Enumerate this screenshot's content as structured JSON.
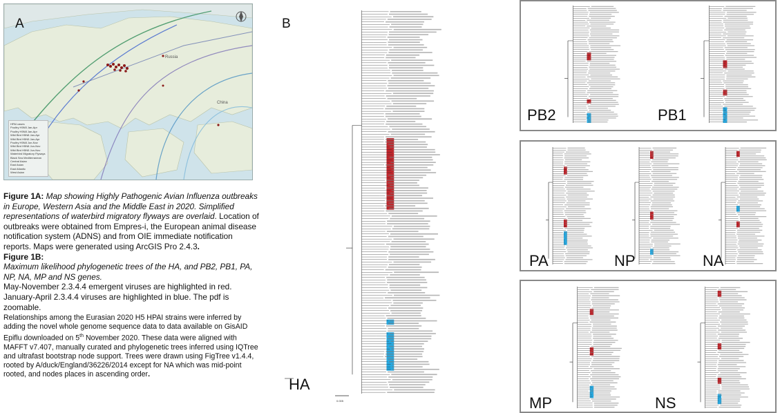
{
  "panel_a": {
    "letter": "A",
    "legend": {
      "items": [
        "HPAI cases",
        "Poultry H5N5 Jan-Apr",
        "Poultry H5N8 Jan-Apr",
        "Wild Bird H5N8 Jan-Apr",
        "Wild Bird H5N5 Jan-Apr",
        "Poultry H5N8 Jun-Nov",
        "Wild Bird H5N8 Jun-Nov",
        "Wild Bird H5N5 Jun-Nov",
        "Waterbird Migratory Flyways",
        "Black Sea Mediterranean",
        "Central Asian",
        "East Asian",
        "East Atlantic",
        "West Asian"
      ]
    },
    "region_labels": [
      "Russia",
      "China"
    ]
  },
  "caption": {
    "fig1a_label": "Figure 1A:",
    "fig1a_italic": "Map showing Highly Pathogenic Avian Influenza outbreaks in Europe, Western Asia and the Middle East in 2020. Simplified representations of waterbird migratory flyways are overlaid",
    "fig1a_rest": ". Location of outbreaks were obtained from Empres-i, the European animal disease notification system (ADNS) and from OIE immediate notification reports. Maps were generated using ArcGIS Pro 2.4.3",
    "fig1a_end": ".",
    "fig1b_label": "Figure 1B:",
    "fig1b_italic": "Maximum likelihood phylogenetic trees of the HA, and PB2, PB1, PA, NP, NA, MP and NS genes.",
    "fig1b_red": "May-November 2.3.4.4 emergent viruses are highlighted in red.",
    "fig1b_blue": "January-April 2.3.4.4 viruses are highlighted in blue. The pdf is zoomable.",
    "methods_pre": "Relationships among the Eurasian 2020 H5 HPAI strains were inferred by adding the novel whole genome sequence data to data available on GisAID Epiflu downloaded on 5",
    "methods_sup": "th",
    "methods_post": " November 2020. These data were aligned with MAFFT v7.407, manually curated and phylogenetic trees inferred using IQTree and ultrafast bootstrap node support. Trees were drawn using FigTree v1.4.4, rooted by A/duck/England/36226/2014 except for NA which was mid-point rooted, and nodes places in ascending order",
    "methods_end": "."
  },
  "panel_b": {
    "letter": "B",
    "tree_label": "HA",
    "scale": "0.005"
  },
  "segments": {
    "box1": [
      "PB2",
      "PB1"
    ],
    "box2": [
      "PA",
      "NP",
      "NA"
    ],
    "box3": [
      "MP",
      "NS"
    ]
  },
  "colors": {
    "red_clade": "#c0272d",
    "blue_clade": "#27a9e1",
    "tree_line": "#222222",
    "box_border": "#888888"
  }
}
